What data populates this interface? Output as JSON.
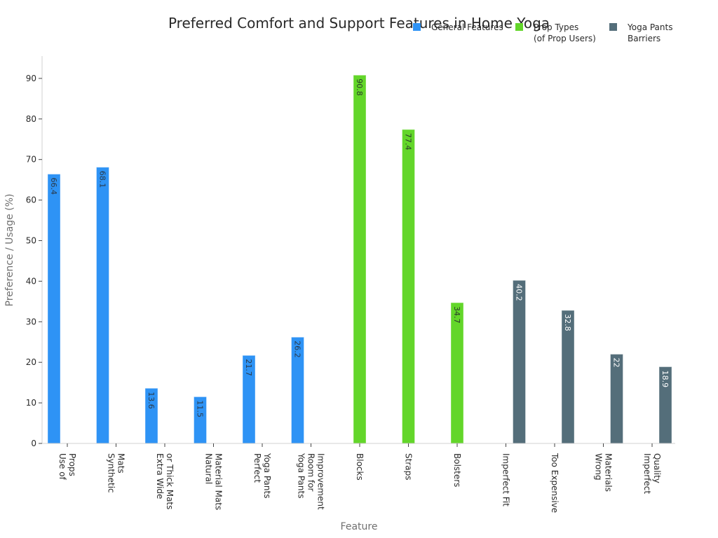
{
  "chart_data": {
    "type": "bar",
    "title": "Preferred Comfort and Support Features in Home Yoga",
    "xlabel": "Feature",
    "ylabel": "Preference / Usage (%)",
    "ylim": [
      0,
      95
    ],
    "yticks": [
      0,
      10,
      20,
      30,
      40,
      50,
      60,
      70,
      80,
      90
    ],
    "grid": false,
    "legend_position": "top-right",
    "categories": [
      [
        "Use of",
        "Props"
      ],
      [
        "Synthetic",
        "Mats"
      ],
      [
        "Extra Wide",
        "or Thick Mats"
      ],
      [
        "Natural",
        "Material Mats"
      ],
      [
        "Perfect",
        "Yoga Pants"
      ],
      [
        "Yoga Pants",
        "Room for",
        "Improvement"
      ],
      [
        "Blocks"
      ],
      [
        "Straps"
      ],
      [
        "Bolsters"
      ],
      [
        "Imperfect Fit"
      ],
      [
        "Too Expensive"
      ],
      [
        "Wrong",
        "Materials"
      ],
      [
        "Imperfect",
        "Quality"
      ]
    ],
    "series": [
      {
        "name": "General Features",
        "legend_lines": [
          "General Features"
        ],
        "color": "#2e93f5",
        "label_color": "#2a3a4a",
        "offset": -1,
        "values": [
          66.4,
          68.1,
          13.6,
          11.5,
          21.7,
          26.2,
          null,
          null,
          null,
          null,
          null,
          null,
          null
        ]
      },
      {
        "name": "Prop Types (of Prop Users)",
        "legend_lines": [
          "Prop Types",
          "(of Prop Users)"
        ],
        "color": "#63d62a",
        "label_color": "#2a3a2a",
        "offset": 0,
        "values": [
          null,
          null,
          null,
          null,
          null,
          null,
          90.8,
          77.4,
          34.7,
          null,
          null,
          null,
          null
        ]
      },
      {
        "name": "Yoga Pants Barriers",
        "legend_lines": [
          "Yoga Pants",
          "Barriers"
        ],
        "color": "#546e7a",
        "label_color": "#ffffff",
        "offset": 1,
        "values": [
          null,
          null,
          null,
          null,
          null,
          null,
          null,
          null,
          null,
          40.2,
          32.8,
          22,
          18.9
        ]
      }
    ]
  }
}
